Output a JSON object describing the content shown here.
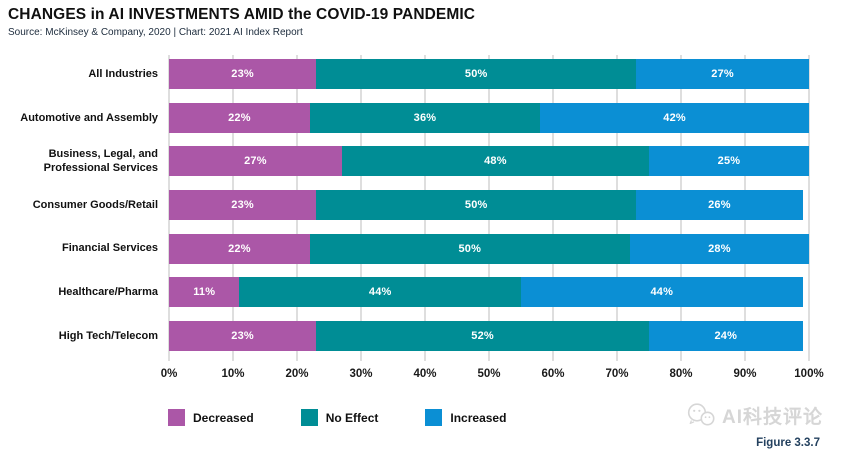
{
  "header": {
    "title": "CHANGES in AI INVESTMENTS AMID the COVID-19 PANDEMIC",
    "source_line": "Source: McKinsey & Company, 2020 | Chart: 2021 AI Index Report"
  },
  "figure_label": "Figure 3.3.7",
  "watermark_text": "AI科技评论",
  "colors": {
    "decreased": "#ab57a7",
    "no_effect": "#008d95",
    "increased": "#0b8fd4",
    "gridline": "#dedede",
    "figure_label": "#24415f",
    "watermark": "#d6d6d6"
  },
  "chart_data": {
    "type": "bar",
    "orientation": "horizontal",
    "stacked": true,
    "title": "CHANGES in AI INVESTMENTS AMID the COVID-19 PANDEMIC",
    "categories": [
      "All Industries",
      "Automotive and Assembly",
      "Business, Legal, and Professional Services",
      "Consumer Goods/Retail",
      "Financial Services",
      "Healthcare/Pharma",
      "High Tech/Telecom"
    ],
    "series": [
      {
        "name": "Decreased",
        "color": "#ab57a7",
        "values": [
          23,
          22,
          27,
          23,
          22,
          11,
          23
        ]
      },
      {
        "name": "No Effect",
        "color": "#008d95",
        "values": [
          50,
          36,
          48,
          50,
          50,
          44,
          52
        ]
      },
      {
        "name": "Increased",
        "color": "#0b8fd4",
        "values": [
          27,
          42,
          25,
          26,
          28,
          44,
          24
        ]
      }
    ],
    "value_label_suffix": "%",
    "xlim": [
      0,
      100
    ],
    "x_ticks": [
      "0%",
      "10%",
      "20%",
      "30%",
      "40%",
      "50%",
      "60%",
      "70%",
      "80%",
      "90%",
      "100%"
    ],
    "grid": true,
    "legend": [
      "Decreased",
      "No Effect",
      "Increased"
    ],
    "legend_position": "bottom-left"
  }
}
